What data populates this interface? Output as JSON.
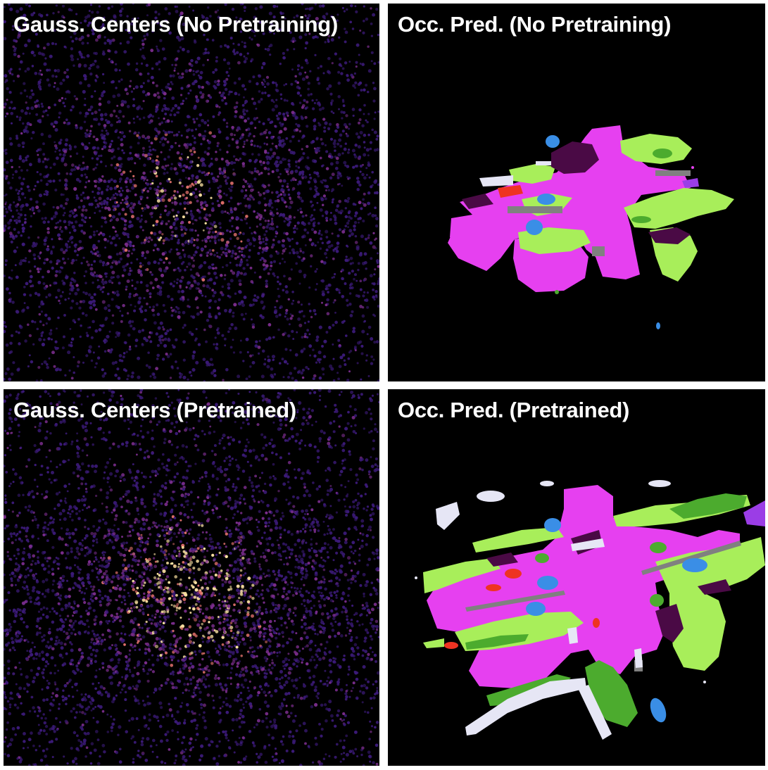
{
  "panels": [
    {
      "title": "Gauss. Centers (No Pretraining)",
      "kind": "gaussian-centers",
      "colormap": "magma",
      "density": "sparse"
    },
    {
      "title": "Occ. Pred. (No Pretraining)",
      "kind": "occupancy-prediction"
    },
    {
      "title": "Gauss. Centers (Pretrained)",
      "kind": "gaussian-centers",
      "colormap": "magma",
      "density": "dense"
    },
    {
      "title": "Occ. Pred. (Pretrained)",
      "kind": "occupancy-prediction"
    }
  ],
  "colors": {
    "background": "#000000",
    "magenta": "#e640f0",
    "light_green": "#a8ee5a",
    "dark_green": "#4cab2e",
    "dark_purple": "#4a0a45",
    "gray": "#808080",
    "blue": "#3a8ee6",
    "red": "#ee3322",
    "white": "#e6e6f5",
    "violet": "#9b3de6",
    "point_dark": "#3b1a78",
    "point_mid": "#7a2d8c",
    "point_warm": "#e0706b",
    "point_hot": "#fde3a3"
  }
}
